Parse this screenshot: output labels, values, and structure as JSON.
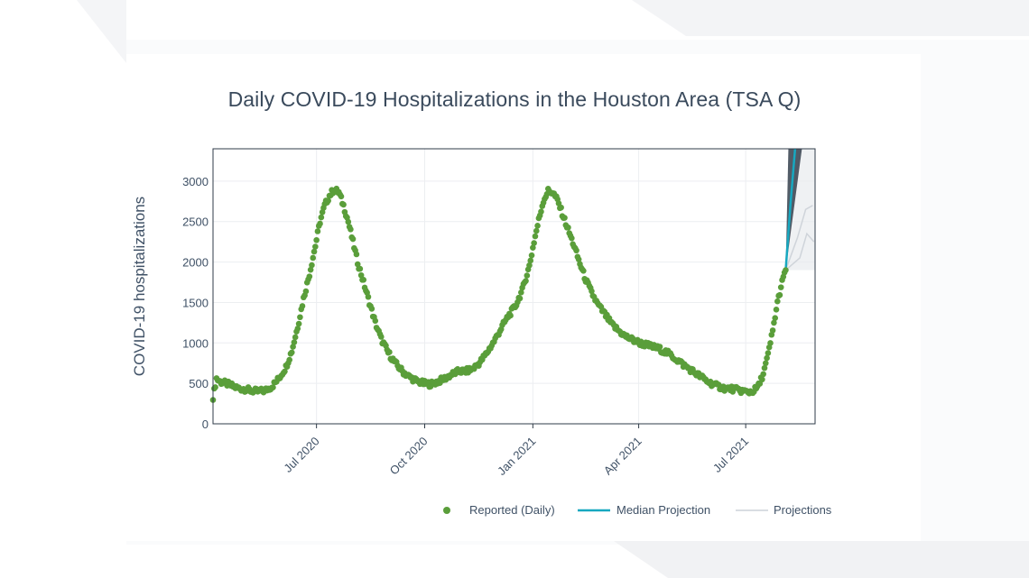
{
  "chart_data": {
    "type": "scatter",
    "title": "Daily COVID-19 Hospitalizations in the Houston Area (TSA Q)",
    "xlabel": "",
    "ylabel": "COVID-19 hospitalizations",
    "x_type": "date",
    "xlim": [
      "2020-04-04",
      "2021-08-29"
    ],
    "ylim": [
      0,
      3400
    ],
    "y_ticks": [
      0,
      500,
      1000,
      1500,
      2000,
      2500,
      3000
    ],
    "x_ticks": [
      {
        "date": "2020-07-01",
        "label": "Jul 2020"
      },
      {
        "date": "2020-10-01",
        "label": "Oct 2020"
      },
      {
        "date": "2021-01-01",
        "label": "Jan 2021"
      },
      {
        "date": "2021-04-01",
        "label": "Apr 2021"
      },
      {
        "date": "2021-07-01",
        "label": "Jul 2021"
      }
    ],
    "grid": true,
    "legend_position": "bottom",
    "series": [
      {
        "name": "Reported (Daily)",
        "type": "scatter",
        "color": "#5a9e3a",
        "points": [
          [
            "2020-04-04",
            330
          ],
          [
            "2020-04-07",
            560
          ],
          [
            "2020-04-10",
            520
          ],
          [
            "2020-04-15",
            500
          ],
          [
            "2020-04-20",
            470
          ],
          [
            "2020-04-25",
            440
          ],
          [
            "2020-05-01",
            430
          ],
          [
            "2020-05-06",
            410
          ],
          [
            "2020-05-12",
            400
          ],
          [
            "2020-05-18",
            410
          ],
          [
            "2020-05-24",
            460
          ],
          [
            "2020-05-30",
            560
          ],
          [
            "2020-06-05",
            700
          ],
          [
            "2020-06-10",
            900
          ],
          [
            "2020-06-15",
            1200
          ],
          [
            "2020-06-20",
            1550
          ],
          [
            "2020-06-25",
            1850
          ],
          [
            "2020-06-30",
            2200
          ],
          [
            "2020-07-04",
            2500
          ],
          [
            "2020-07-08",
            2700
          ],
          [
            "2020-07-12",
            2820
          ],
          [
            "2020-07-16",
            2900
          ],
          [
            "2020-07-20",
            2860
          ],
          [
            "2020-07-24",
            2700
          ],
          [
            "2020-07-28",
            2500
          ],
          [
            "2020-08-01",
            2250
          ],
          [
            "2020-08-05",
            2000
          ],
          [
            "2020-08-10",
            1750
          ],
          [
            "2020-08-15",
            1500
          ],
          [
            "2020-08-20",
            1250
          ],
          [
            "2020-08-25",
            1050
          ],
          [
            "2020-08-31",
            880
          ],
          [
            "2020-09-06",
            750
          ],
          [
            "2020-09-12",
            650
          ],
          [
            "2020-09-18",
            580
          ],
          [
            "2020-09-24",
            530
          ],
          [
            "2020-09-30",
            500
          ],
          [
            "2020-10-06",
            490
          ],
          [
            "2020-10-12",
            520
          ],
          [
            "2020-10-18",
            560
          ],
          [
            "2020-10-24",
            610
          ],
          [
            "2020-10-30",
            650
          ],
          [
            "2020-11-05",
            650
          ],
          [
            "2020-11-11",
            680
          ],
          [
            "2020-11-17",
            760
          ],
          [
            "2020-11-23",
            880
          ],
          [
            "2020-11-29",
            1020
          ],
          [
            "2020-12-05",
            1180
          ],
          [
            "2020-12-11",
            1330
          ],
          [
            "2020-12-17",
            1450
          ],
          [
            "2020-12-23",
            1650
          ],
          [
            "2020-12-29",
            1950
          ],
          [
            "2021-01-02",
            2250
          ],
          [
            "2021-01-06",
            2520
          ],
          [
            "2021-01-10",
            2760
          ],
          [
            "2021-01-14",
            2880
          ],
          [
            "2021-01-18",
            2860
          ],
          [
            "2021-01-22",
            2760
          ],
          [
            "2021-01-26",
            2600
          ],
          [
            "2021-01-31",
            2400
          ],
          [
            "2021-02-05",
            2200
          ],
          [
            "2021-02-10",
            1980
          ],
          [
            "2021-02-15",
            1780
          ],
          [
            "2021-02-20",
            1620
          ],
          [
            "2021-02-25",
            1480
          ],
          [
            "2021-03-03",
            1360
          ],
          [
            "2021-03-09",
            1230
          ],
          [
            "2021-03-15",
            1150
          ],
          [
            "2021-03-21",
            1080
          ],
          [
            "2021-03-28",
            1030
          ],
          [
            "2021-04-04",
            990
          ],
          [
            "2021-04-11",
            960
          ],
          [
            "2021-04-18",
            930
          ],
          [
            "2021-04-25",
            880
          ],
          [
            "2021-05-02",
            810
          ],
          [
            "2021-05-09",
            730
          ],
          [
            "2021-05-16",
            660
          ],
          [
            "2021-05-23",
            590
          ],
          [
            "2021-05-30",
            520
          ],
          [
            "2021-06-06",
            470
          ],
          [
            "2021-06-13",
            440
          ],
          [
            "2021-06-20",
            430
          ],
          [
            "2021-06-27",
            410
          ],
          [
            "2021-07-03",
            390
          ],
          [
            "2021-07-08",
            410
          ],
          [
            "2021-07-12",
            470
          ],
          [
            "2021-07-16",
            620
          ],
          [
            "2021-07-20",
            850
          ],
          [
            "2021-07-24",
            1150
          ],
          [
            "2021-07-28",
            1500
          ],
          [
            "2021-08-01",
            1750
          ],
          [
            "2021-08-04",
            1900
          ]
        ]
      },
      {
        "name": "Median Projection",
        "type": "line",
        "color": "#17a8c0",
        "points": [
          [
            "2021-08-04",
            1900
          ],
          [
            "2021-08-08",
            2700
          ],
          [
            "2021-08-12",
            3400
          ]
        ]
      },
      {
        "name": "Projections",
        "type": "line",
        "color": "#d9dde2",
        "points": [
          [
            "2021-08-04",
            1900
          ],
          [
            "2021-08-14",
            2300
          ],
          [
            "2021-08-21",
            2650
          ],
          [
            "2021-08-27",
            2700
          ]
        ]
      }
    ]
  },
  "legend": {
    "items": [
      "Reported (Daily)",
      "Median Projection",
      "Projections"
    ]
  }
}
